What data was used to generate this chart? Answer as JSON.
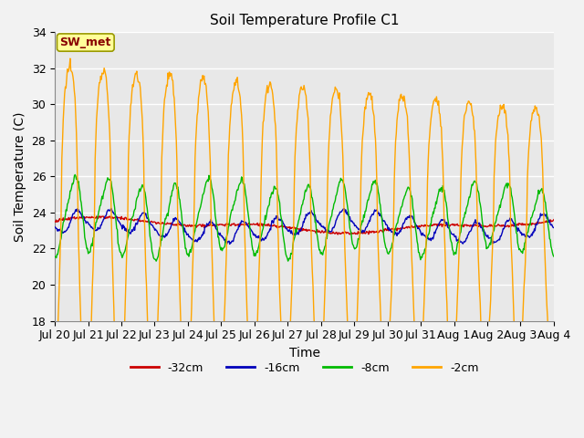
{
  "title": "Soil Temperature Profile C1",
  "xlabel": "Time",
  "ylabel": "Soil Temperature (C)",
  "ylim": [
    18,
    34
  ],
  "annotation_text": "SW_met",
  "annotation_bg": "#FFFF99",
  "annotation_border": "#999900",
  "annotation_fg": "#880000",
  "legend_labels": [
    "-32cm",
    "-16cm",
    "-8cm",
    "-2cm"
  ],
  "line_colors": [
    "#CC0000",
    "#0000BB",
    "#00BB00",
    "#FFA500"
  ],
  "background_color": "#E8E8E8",
  "grid_color": "#FFFFFF",
  "n_days": 15,
  "x_tick_labels": [
    "Jul 20",
    "Jul 21",
    "Jul 22",
    "Jul 23",
    "Jul 24",
    "Jul 25",
    "Jul 26",
    "Jul 27",
    "Jul 28",
    "Jul 29",
    "Jul 30",
    "Jul 31",
    "Aug 1",
    "Aug 2",
    "Aug 3",
    "Aug 4"
  ],
  "yticks": [
    18,
    20,
    22,
    24,
    26,
    28,
    30,
    32,
    34
  ],
  "figsize": [
    6.4,
    4.8
  ],
  "dpi": 100
}
